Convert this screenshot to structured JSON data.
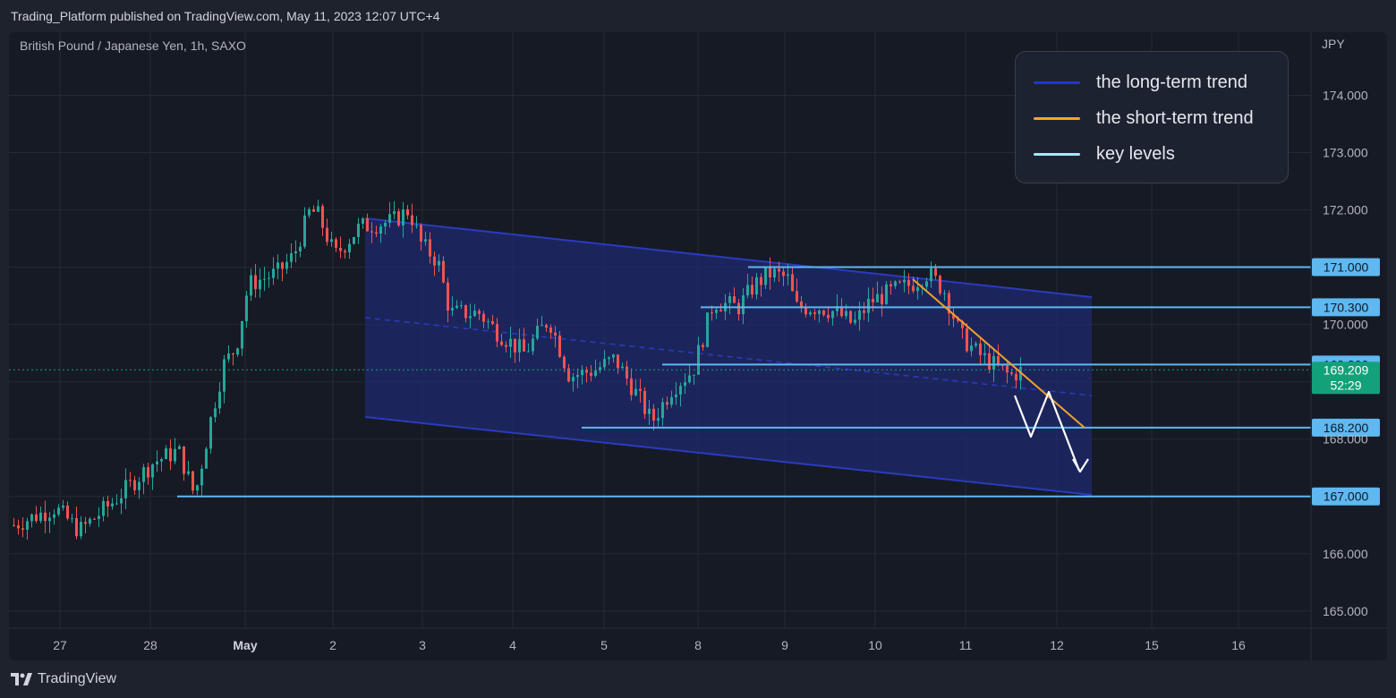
{
  "header": {
    "publisher_text": "Trading_Platform published on TradingView.com, May 11, 2023 12:07 UTC+4"
  },
  "footer": {
    "brand_label": "TradingView"
  },
  "colors": {
    "up": "#26a69a",
    "down": "#ef5350",
    "channel": "#2a3bbf",
    "channel_fill": "#1f2a6e",
    "short_trend": "#f0a02b",
    "key_level": "#5fb8f0",
    "price_label": "#13a17a",
    "arrow": "#ffffff"
  },
  "chart_data": {
    "type": "candlestick",
    "title": "British Pound / Japanese Yen, 1h, SAXO",
    "currency_label": "JPY",
    "y_ticks": [
      "174.000",
      "173.000",
      "172.000",
      "170.000",
      "168.000",
      "166.000",
      "165.000"
    ],
    "x_ticks": [
      "27",
      "28",
      "May",
      "2",
      "3",
      "4",
      "5",
      "8",
      "9",
      "10",
      "11",
      "12",
      "15",
      "16"
    ],
    "ylim": [
      164.7,
      175.1
    ],
    "current_price": "169.209",
    "countdown": "52:29",
    "key_levels": [
      {
        "value": 171.0,
        "label": "171.000",
        "from": "May 8 12:00"
      },
      {
        "value": 170.3,
        "label": "170.300",
        "from": "May 8 00:00"
      },
      {
        "value": 169.3,
        "label": "169.300",
        "from": "May 5 16:00"
      },
      {
        "value": 168.2,
        "label": "168.200",
        "from": "May 4 20:00"
      },
      {
        "value": 167.0,
        "label": "167.000",
        "from": "Apr 28 08:00"
      }
    ],
    "legend": [
      {
        "label": "the long-term trend",
        "color": "#2233dd"
      },
      {
        "label": "the short-term trend",
        "color": "#f5a524"
      },
      {
        "label": "key levels",
        "color": "#a8e6ff"
      }
    ],
    "candle_path": [
      [
        166.5,
        0
      ],
      [
        166.8,
        10
      ],
      [
        166.4,
        16
      ],
      [
        166.9,
        24
      ],
      [
        167.6,
        34
      ],
      [
        167.8,
        40
      ],
      [
        167.0,
        44
      ],
      [
        168.4,
        48
      ],
      [
        169.3,
        51
      ],
      [
        169.6,
        54
      ],
      [
        170.7,
        57
      ],
      [
        170.9,
        64
      ],
      [
        171.2,
        68
      ],
      [
        172.0,
        72
      ],
      [
        171.9,
        74
      ],
      [
        171.2,
        78
      ],
      [
        171.7,
        84
      ],
      [
        171.8,
        92
      ],
      [
        172.0,
        96
      ],
      [
        171.4,
        99
      ],
      [
        171.1,
        103
      ],
      [
        170.2,
        106
      ],
      [
        170.2,
        113
      ],
      [
        169.9,
        117
      ],
      [
        169.5,
        124
      ],
      [
        170.1,
        130
      ],
      [
        169.1,
        135
      ],
      [
        169.2,
        141
      ],
      [
        169.4,
        146
      ],
      [
        168.7,
        152
      ],
      [
        168.3,
        155
      ],
      [
        168.9,
        160
      ],
      [
        169.2,
        165
      ],
      [
        170.4,
        170
      ],
      [
        170.3,
        176
      ],
      [
        170.7,
        180
      ],
      [
        170.9,
        184
      ],
      [
        170.8,
        188
      ],
      [
        170.3,
        190
      ],
      [
        170.3,
        196
      ],
      [
        170.2,
        200
      ],
      [
        170.0,
        204
      ],
      [
        170.4,
        208
      ],
      [
        170.6,
        214
      ],
      [
        170.7,
        218
      ],
      [
        170.9,
        222
      ],
      [
        170.6,
        226
      ],
      [
        169.8,
        230
      ],
      [
        169.5,
        234
      ],
      [
        169.3,
        238
      ],
      [
        169.1,
        242
      ],
      [
        169.2,
        245
      ]
    ]
  }
}
